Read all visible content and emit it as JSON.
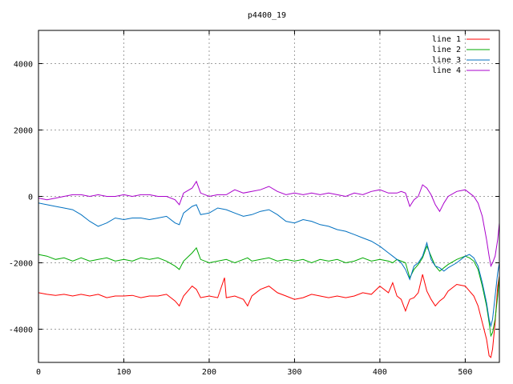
{
  "chart_data": {
    "type": "line",
    "title": "p4400_19",
    "xlabel": "",
    "ylabel": "",
    "xlim": [
      0,
      540
    ],
    "ylim": [
      -5000,
      5000
    ],
    "x_ticks": [
      0,
      100,
      200,
      300,
      400,
      500
    ],
    "y_ticks": [
      -4000,
      -2000,
      0,
      2000,
      4000
    ],
    "grid": true,
    "legend_position": "top-right",
    "series": [
      {
        "name": "line 1",
        "color": "#ff0000",
        "x": [
          0,
          10,
          20,
          30,
          40,
          50,
          60,
          70,
          80,
          90,
          100,
          110,
          120,
          130,
          140,
          150,
          160,
          165,
          170,
          180,
          185,
          190,
          200,
          210,
          218,
          220,
          230,
          240,
          245,
          250,
          260,
          270,
          280,
          290,
          300,
          310,
          320,
          330,
          340,
          350,
          360,
          370,
          380,
          390,
          400,
          410,
          415,
          420,
          425,
          430,
          435,
          440,
          445,
          450,
          455,
          460,
          465,
          470,
          475,
          480,
          490,
          500,
          505,
          510,
          515,
          520,
          525,
          528,
          530,
          532,
          535,
          538,
          540
        ],
        "y": [
          -2900,
          -2950,
          -2980,
          -2950,
          -3000,
          -2950,
          -3000,
          -2950,
          -3050,
          -3000,
          -3000,
          -2980,
          -3050,
          -3000,
          -3000,
          -2950,
          -3150,
          -3300,
          -3000,
          -2700,
          -2800,
          -3050,
          -3000,
          -3050,
          -2450,
          -3050,
          -3000,
          -3100,
          -3300,
          -3000,
          -2800,
          -2700,
          -2900,
          -3000,
          -3100,
          -3050,
          -2950,
          -3000,
          -3050,
          -3000,
          -3050,
          -3000,
          -2900,
          -2950,
          -2700,
          -2900,
          -2600,
          -3000,
          -3100,
          -3450,
          -3100,
          -3050,
          -2900,
          -2350,
          -2850,
          -3100,
          -3300,
          -3150,
          -3050,
          -2850,
          -2650,
          -2700,
          -2850,
          -3000,
          -3300,
          -3800,
          -4300,
          -4800,
          -4850,
          -4600,
          -3800,
          -2700,
          -2400
        ]
      },
      {
        "name": "line 2",
        "color": "#00aa00",
        "x": [
          0,
          10,
          20,
          30,
          40,
          50,
          60,
          70,
          80,
          90,
          100,
          110,
          120,
          130,
          140,
          150,
          160,
          165,
          170,
          180,
          185,
          190,
          200,
          210,
          220,
          230,
          240,
          245,
          250,
          260,
          270,
          280,
          290,
          300,
          310,
          320,
          330,
          340,
          350,
          360,
          370,
          380,
          390,
          400,
          410,
          415,
          420,
          425,
          430,
          435,
          440,
          445,
          450,
          455,
          460,
          465,
          470,
          475,
          480,
          490,
          500,
          505,
          510,
          515,
          520,
          525,
          528,
          530,
          532,
          535,
          538,
          540
        ],
        "y": [
          -1750,
          -1800,
          -1900,
          -1850,
          -1950,
          -1850,
          -1950,
          -1900,
          -1850,
          -1950,
          -1900,
          -1950,
          -1850,
          -1900,
          -1850,
          -1950,
          -2100,
          -2200,
          -1950,
          -1700,
          -1550,
          -1900,
          -2000,
          -1950,
          -1900,
          -2000,
          -1900,
          -1850,
          -1950,
          -1900,
          -1850,
          -1950,
          -1900,
          -1950,
          -1900,
          -2000,
          -1900,
          -1950,
          -1900,
          -2000,
          -1950,
          -1850,
          -1950,
          -1900,
          -1950,
          -2000,
          -1900,
          -1950,
          -2000,
          -2450,
          -2200,
          -2050,
          -1850,
          -1500,
          -1800,
          -2100,
          -2250,
          -2150,
          -2050,
          -1900,
          -1800,
          -1850,
          -1950,
          -2200,
          -2700,
          -3300,
          -3800,
          -4200,
          -4100,
          -3700,
          -3000,
          -2400
        ]
      },
      {
        "name": "line 3",
        "color": "#0070c0",
        "x": [
          0,
          10,
          20,
          30,
          40,
          50,
          60,
          70,
          80,
          90,
          100,
          110,
          120,
          130,
          140,
          150,
          160,
          165,
          170,
          180,
          185,
          190,
          200,
          210,
          220,
          230,
          240,
          250,
          260,
          270,
          280,
          290,
          300,
          310,
          320,
          330,
          340,
          350,
          360,
          370,
          380,
          390,
          400,
          410,
          415,
          420,
          425,
          430,
          435,
          440,
          445,
          450,
          455,
          460,
          465,
          470,
          475,
          480,
          490,
          500,
          505,
          510,
          515,
          520,
          525,
          528,
          530,
          532,
          535,
          538,
          540
        ],
        "y": [
          -200,
          -250,
          -300,
          -350,
          -400,
          -550,
          -750,
          -900,
          -800,
          -650,
          -700,
          -650,
          -650,
          -700,
          -650,
          -600,
          -800,
          -850,
          -500,
          -300,
          -250,
          -550,
          -500,
          -350,
          -400,
          -500,
          -600,
          -550,
          -450,
          -400,
          -550,
          -750,
          -800,
          -700,
          -750,
          -850,
          -900,
          -1000,
          -1050,
          -1150,
          -1250,
          -1350,
          -1500,
          -1700,
          -1800,
          -1900,
          -2000,
          -2200,
          -2500,
          -2100,
          -2000,
          -1800,
          -1400,
          -1900,
          -2100,
          -2150,
          -2250,
          -2150,
          -2000,
          -1800,
          -1750,
          -1850,
          -2100,
          -2600,
          -3200,
          -3700,
          -3900,
          -3700,
          -3000,
          -2300,
          -2000
        ]
      },
      {
        "name": "line 4",
        "color": "#aa00cc",
        "x": [
          0,
          10,
          20,
          30,
          40,
          50,
          60,
          70,
          80,
          90,
          100,
          110,
          120,
          130,
          140,
          150,
          160,
          165,
          170,
          180,
          185,
          190,
          200,
          210,
          220,
          230,
          240,
          250,
          260,
          270,
          280,
          290,
          300,
          310,
          320,
          330,
          340,
          350,
          360,
          370,
          380,
          390,
          400,
          410,
          420,
          425,
          430,
          435,
          440,
          445,
          450,
          455,
          460,
          465,
          470,
          475,
          480,
          490,
          500,
          505,
          510,
          515,
          520,
          525,
          528,
          530,
          532,
          535,
          538,
          540
        ],
        "y": [
          -50,
          -100,
          -50,
          0,
          50,
          50,
          0,
          50,
          0,
          0,
          50,
          0,
          50,
          50,
          0,
          0,
          -100,
          -250,
          100,
          250,
          450,
          100,
          0,
          50,
          50,
          200,
          100,
          150,
          200,
          300,
          150,
          50,
          100,
          50,
          100,
          50,
          100,
          50,
          0,
          100,
          50,
          150,
          200,
          100,
          100,
          150,
          100,
          -300,
          -100,
          0,
          350,
          250,
          50,
          -250,
          -450,
          -200,
          0,
          150,
          200,
          100,
          0,
          -200,
          -600,
          -1300,
          -1800,
          -2100,
          -2000,
          -1800,
          -1300,
          -800
        ]
      }
    ]
  }
}
